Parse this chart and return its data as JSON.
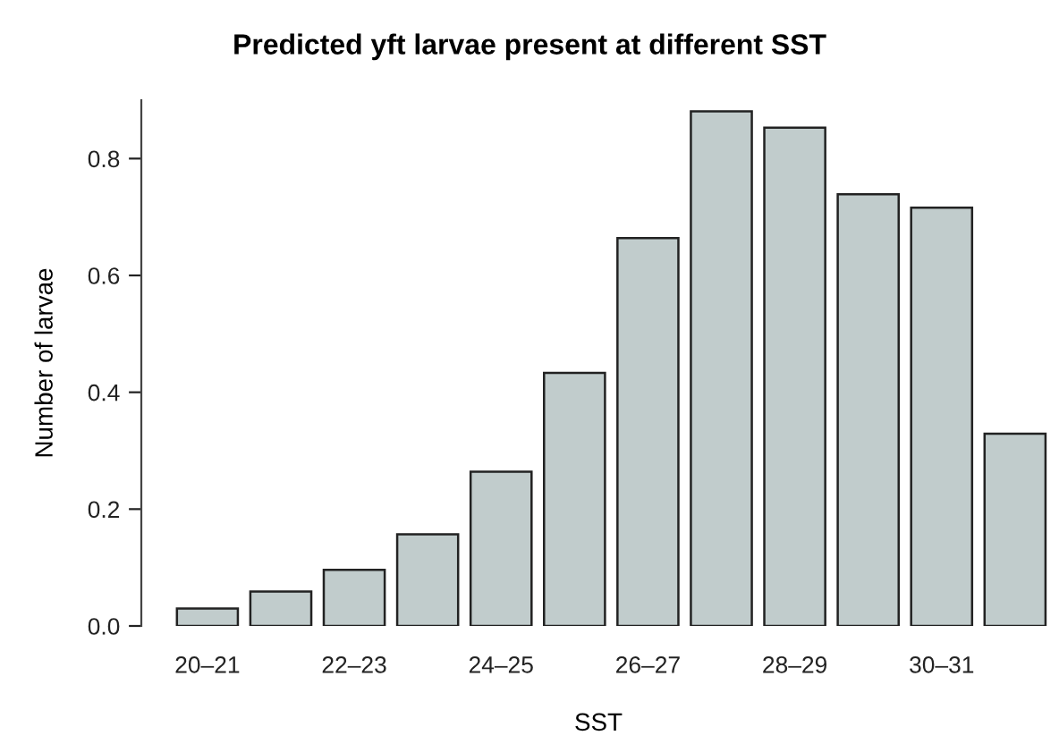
{
  "chart_data": {
    "type": "bar",
    "title": "Predicted yft larvae present at different SST",
    "xlabel": "SST",
    "ylabel": "Number of larvae",
    "categories": [
      "20–21",
      null,
      "22–23",
      null,
      "24–25",
      null,
      "26–27",
      null,
      "28–29",
      null,
      "30–31",
      null
    ],
    "values": [
      0.03,
      0.059,
      0.096,
      0.157,
      0.264,
      0.433,
      0.664,
      0.881,
      0.853,
      0.739,
      0.716,
      0.329
    ],
    "color": "#c1cccc",
    "ylim": [
      0,
      0.9
    ],
    "yticks": [
      {
        "value": 0,
        "label": "0.0"
      },
      0.2,
      0.4,
      0.6,
      0.8
    ],
    "grid": false
  }
}
